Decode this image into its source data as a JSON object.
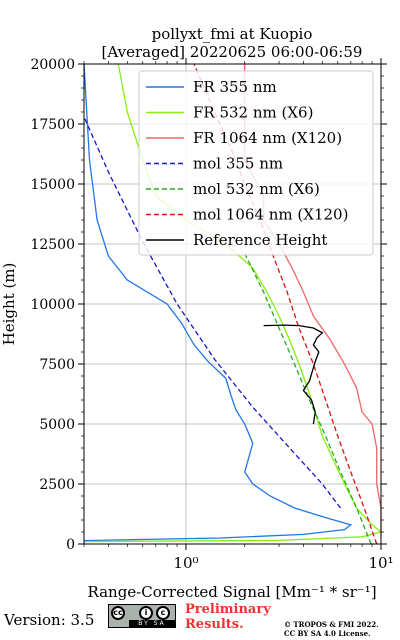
{
  "chart_data": {
    "type": "line",
    "title": "pollyxt_fmi at Kuopio",
    "subtitle": "[Averaged] 20220625 06:00-06:59",
    "xlabel": "Range-Corrected Signal [Mm⁻¹ * sr⁻¹]",
    "ylabel": "Height (m)",
    "xscale": "log",
    "xlim": [
      0.3,
      10
    ],
    "ylim": [
      0,
      20000
    ],
    "yticks": [
      0,
      2500,
      5000,
      7500,
      10000,
      12500,
      15000,
      17500,
      20000
    ],
    "xtick_labels": [
      "10⁰",
      "10¹"
    ],
    "grid": true,
    "legend_position": "top-right",
    "series": [
      {
        "name": "FR 355 nm",
        "color": "#1f77e8",
        "style": "solid",
        "points": [
          [
            0.3,
            140
          ],
          [
            1.5,
            250
          ],
          [
            4.0,
            400
          ],
          [
            6.5,
            600
          ],
          [
            7.0,
            800
          ],
          [
            5.2,
            1100
          ],
          [
            3.6,
            1500
          ],
          [
            2.7,
            2000
          ],
          [
            2.2,
            2500
          ],
          [
            2.0,
            3000
          ],
          [
            2.1,
            3600
          ],
          [
            2.2,
            4200
          ],
          [
            2.0,
            5000
          ],
          [
            1.8,
            5600
          ],
          [
            1.7,
            6200
          ],
          [
            1.6,
            6900
          ],
          [
            1.3,
            7600
          ],
          [
            1.1,
            8300
          ],
          [
            0.95,
            9200
          ],
          [
            0.8,
            10000
          ],
          [
            0.5,
            11000
          ],
          [
            0.4,
            12000
          ],
          [
            0.35,
            13500
          ],
          [
            0.32,
            16000
          ],
          [
            0.3,
            20000
          ]
        ]
      },
      {
        "name": "FR 532 nm (X6)",
        "color": "#88ee11",
        "style": "solid",
        "points": [
          [
            0.3,
            100
          ],
          [
            3.0,
            150
          ],
          [
            8.0,
            300
          ],
          [
            10.0,
            500
          ],
          [
            9.0,
            800
          ],
          [
            7.5,
            1500
          ],
          [
            6.5,
            2500
          ],
          [
            5.7,
            3500
          ],
          [
            5.0,
            4500
          ],
          [
            4.6,
            5500
          ],
          [
            4.2,
            6500
          ],
          [
            3.8,
            7500
          ],
          [
            3.4,
            8500
          ],
          [
            3.0,
            9500
          ],
          [
            2.6,
            10500
          ],
          [
            2.2,
            11500
          ],
          [
            1.6,
            12500
          ],
          [
            1.0,
            13500
          ],
          [
            0.7,
            14500
          ],
          [
            0.6,
            16000
          ],
          [
            0.5,
            18000
          ],
          [
            0.45,
            20000
          ]
        ]
      },
      {
        "name": "FR 1064 nm (X120)",
        "color": "#f06666",
        "style": "solid",
        "points": [
          [
            10.0,
            300
          ],
          [
            10.0,
            1500
          ],
          [
            9.5,
            2500
          ],
          [
            9.5,
            4000
          ],
          [
            9.0,
            5000
          ],
          [
            8.0,
            5500
          ],
          [
            7.5,
            6500
          ],
          [
            6.5,
            7500
          ],
          [
            5.5,
            8500
          ],
          [
            4.5,
            9500
          ],
          [
            4.0,
            10500
          ],
          [
            3.5,
            11500
          ],
          [
            3.0,
            12500
          ],
          [
            2.5,
            13500
          ],
          [
            2.5,
            14500
          ],
          [
            2.0,
            16000
          ],
          [
            2.0,
            18000
          ],
          [
            2.0,
            20000
          ]
        ]
      },
      {
        "name": "mol 355 nm",
        "color": "#1515cc",
        "style": "dashed",
        "points": [
          [
            6.2,
            1500
          ],
          [
            5.0,
            2500
          ],
          [
            3.4,
            4000
          ],
          [
            2.2,
            5700
          ],
          [
            1.4,
            7700
          ],
          [
            0.9,
            10000
          ],
          [
            0.6,
            12600
          ],
          [
            0.4,
            15500
          ],
          [
            0.3,
            17800
          ]
        ]
      },
      {
        "name": "mol 532 nm (X6)",
        "color": "#22aa22",
        "style": "dashed",
        "points": [
          [
            8.9,
            0
          ],
          [
            7.5,
            1500
          ],
          [
            6.2,
            3000
          ],
          [
            5.2,
            4500
          ],
          [
            4.3,
            6000
          ],
          [
            3.6,
            7500
          ],
          [
            3.0,
            9000
          ],
          [
            2.5,
            10500
          ],
          [
            2.0,
            12100
          ]
        ]
      },
      {
        "name": "mol 1064 nm (X120)",
        "color": "#dd1111",
        "style": "dashed",
        "points": [
          [
            9.5,
            0
          ],
          [
            8.2,
            1500
          ],
          [
            7.0,
            3000
          ],
          [
            6.0,
            4500
          ],
          [
            5.2,
            6000
          ],
          [
            4.5,
            7500
          ],
          [
            3.8,
            9000
          ],
          [
            3.3,
            10500
          ],
          [
            2.8,
            12000
          ],
          [
            2.4,
            13500
          ],
          [
            2.0,
            15000
          ],
          [
            1.7,
            16500
          ],
          [
            1.4,
            18000
          ],
          [
            1.1,
            20000
          ]
        ]
      },
      {
        "name": "Reference Height",
        "color": "#000000",
        "style": "solid",
        "points": [
          [
            4.5,
            5000
          ],
          [
            4.6,
            5500
          ],
          [
            4.4,
            6000
          ],
          [
            4.0,
            6400
          ],
          [
            4.3,
            6800
          ],
          [
            4.6,
            7600
          ],
          [
            4.8,
            8000
          ],
          [
            4.5,
            8300
          ],
          [
            4.7,
            8600
          ],
          [
            5.0,
            8800
          ],
          [
            4.5,
            9000
          ],
          [
            3.8,
            9100
          ],
          [
            3.2,
            9120
          ],
          [
            2.5,
            9100
          ]
        ]
      }
    ]
  },
  "footer": {
    "version_label": "Version: 3.5",
    "cc_label": "BY   SA",
    "preliminary_line1": "Preliminary",
    "preliminary_line2": "Results.",
    "copyright_line1": "© TROPOS & FMI 2022.",
    "copyright_line2": "CC BY SA 4.0 License."
  }
}
